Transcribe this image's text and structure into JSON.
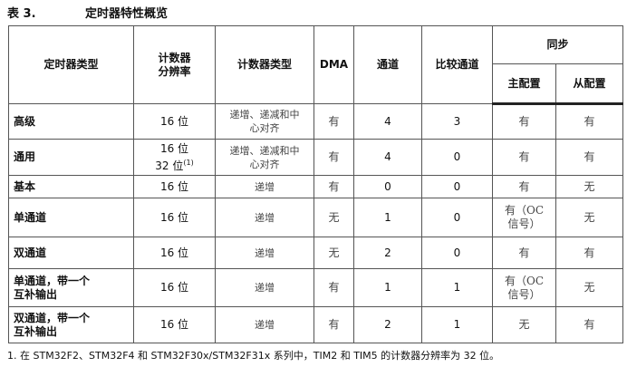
{
  "caption": {
    "number": "表 3.",
    "title": "定时器特性概览"
  },
  "headers": {
    "type": "定时器类型",
    "resolution_1": "计数器",
    "resolution_2": "分辨率",
    "counter_type": "计数器类型",
    "dma": "DMA",
    "channels": "通道",
    "compare": "比较通道",
    "sync": "同步",
    "master": "主配置",
    "slave": "从配置"
  },
  "rows": [
    {
      "type": "高级",
      "res": "16 位",
      "res2": "",
      "counter": "递增、递减和中心对齐",
      "dma": "有",
      "ch": "4",
      "cmp": "3",
      "master": "有",
      "slave": "有"
    },
    {
      "type": "通用",
      "res": "16 位",
      "res2": "32 位",
      "counter": "递增、递减和中心对齐",
      "dma": "有",
      "ch": "4",
      "cmp": "0",
      "master": "有",
      "slave": "有"
    },
    {
      "type": "基本",
      "res": "16 位",
      "res2": "",
      "counter": "递增",
      "dma": "有",
      "ch": "0",
      "cmp": "0",
      "master": "有",
      "slave": "无"
    },
    {
      "type": "单通道",
      "res": "16 位",
      "res2": "",
      "counter": "递增",
      "dma": "无",
      "ch": "1",
      "cmp": "0",
      "master": "有（OC 信号）",
      "slave": "无"
    },
    {
      "type": "双通道",
      "res": "16 位",
      "res2": "",
      "counter": "递增",
      "dma": "无",
      "ch": "2",
      "cmp": "0",
      "master": "有",
      "slave": "有"
    },
    {
      "type": "单通道，带一个互补输出",
      "res": "16 位",
      "res2": "",
      "counter": "递增",
      "dma": "有",
      "ch": "1",
      "cmp": "1",
      "master": "有（OC 信号）",
      "slave": "无"
    },
    {
      "type": "双通道，带一个互补输出",
      "res": "16 位",
      "res2": "",
      "counter": "递增",
      "dma": "有",
      "ch": "2",
      "cmp": "1",
      "master": "无",
      "slave": "有"
    }
  ],
  "footnote_mark": "(1)",
  "footnote": "1.  在 STM32F2、STM32F4 和 STM32F30x/STM32F31x 系列中，TIM2 和 TIM5 的计数器分辨率为 32 位。"
}
